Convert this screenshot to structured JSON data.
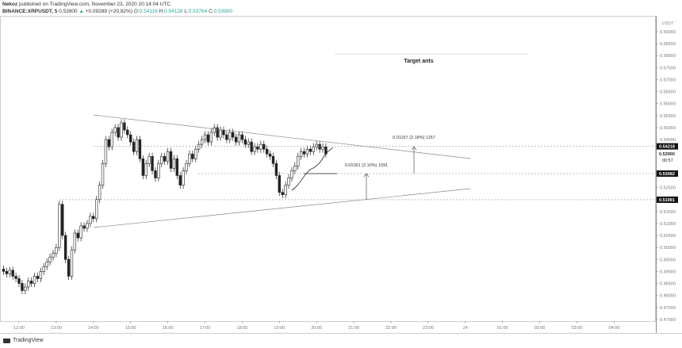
{
  "header": {
    "publisher": "Nekoz",
    "published_text": "published on TradingView.com, November 23, 2020 20:14:04 UTC",
    "symbol": "BINANCE:XRPUSDT, 5",
    "last": "0.53900",
    "change": "+0.09289 (+20.82%)",
    "o_label": "O:",
    "o": "0.54116",
    "h_label": "H:",
    "h": "0.54128",
    "l_label": "L:",
    "l": "0.53764",
    "c_label": "C:",
    "c": "0.53900"
  },
  "footer": {
    "brand": "TradingView"
  },
  "chart_data": {
    "type": "candlestick",
    "interval_minutes": 5,
    "start_time": "11:35",
    "note": "open = previous close",
    "closes": [
      0.49,
      0.489,
      0.4905,
      0.488,
      0.487,
      0.485,
      0.482,
      0.4835,
      0.486,
      0.485,
      0.488,
      0.487,
      0.49,
      0.492,
      0.494,
      0.496,
      0.4975,
      0.5,
      0.518,
      0.505,
      0.495,
      0.488,
      0.499,
      0.506,
      0.504,
      0.509,
      0.508,
      0.51,
      0.513,
      0.512,
      0.52,
      0.526,
      0.535,
      0.545,
      0.542,
      0.548,
      0.55,
      0.546,
      0.552,
      0.549,
      0.547,
      0.544,
      0.54,
      0.545,
      0.537,
      0.53,
      0.535,
      0.538,
      0.532,
      0.529,
      0.535,
      0.538,
      0.536,
      0.54,
      0.533,
      0.537,
      0.53,
      0.526,
      0.532,
      0.535,
      0.539,
      0.537,
      0.541,
      0.543,
      0.545,
      0.547,
      0.544,
      0.548,
      0.55,
      0.546,
      0.549,
      0.547,
      0.545,
      0.548,
      0.546,
      0.544,
      0.547,
      0.545,
      0.543,
      0.544,
      0.54,
      0.542,
      0.541,
      0.543,
      0.541,
      0.539,
      0.538,
      0.535,
      0.53,
      0.523,
      0.522,
      0.526,
      0.529,
      0.532,
      0.534,
      0.538,
      0.54,
      0.539,
      0.541,
      0.54,
      0.542,
      0.543,
      0.541,
      0.542,
      0.539
    ],
    "ylim": [
      0.47,
      0.595
    ],
    "currency": "USDT",
    "y_ticks": [
      "0.59000",
      "0.58500",
      "0.58000",
      "0.57500",
      "0.57000",
      "0.56500",
      "0.56000",
      "0.55500",
      "0.55000",
      "0.54500",
      "0.52500",
      "0.51500",
      "0.51000",
      "0.50500",
      "0.50000",
      "0.49500",
      "0.49000",
      "0.48500",
      "0.48000",
      "0.47500",
      "0.47000"
    ],
    "x_ticks": [
      "12:00",
      "13:00",
      "14:00",
      "15:00",
      "16:00",
      "17:00",
      "18:00",
      "19:00",
      "20:00",
      "21:00",
      "22:00",
      "23:00",
      "24",
      "01:00",
      "02:00",
      "03:00",
      "04:00"
    ],
    "price_labels": [
      {
        "value": 0.54218,
        "text": "0.54218"
      },
      {
        "value": 0.539,
        "text": "0.53900"
      },
      {
        "value": 0.53082,
        "text": "0.53082"
      },
      {
        "value": 0.51991,
        "text": "0.51991"
      }
    ],
    "countdown": "00:57",
    "annotations": {
      "target_text": "Target ants",
      "measure1": "0.01157 (2.18%) 1157",
      "measure2": "0.01091 (2.10%) 1091"
    }
  }
}
